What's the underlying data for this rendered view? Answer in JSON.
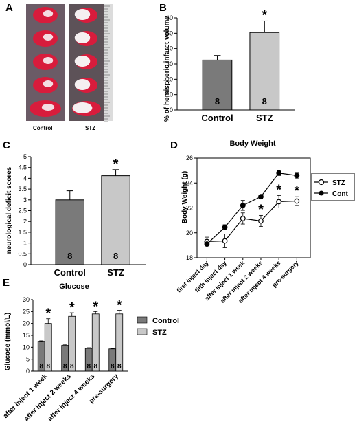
{
  "colors": {
    "control": "#7a7a7a",
    "stz": "#c8c8c8",
    "tissue_red": "#d81c3c",
    "tissue_bg": "#6a6a6a"
  },
  "panel_a": {
    "label": "A",
    "left_label": "Control",
    "right_label": "STZ"
  },
  "chart_data": [
    {
      "id": "B",
      "type": "bar",
      "categories": [
        "Control",
        "STZ"
      ],
      "values": [
        32.5,
        50.5
      ],
      "errors": [
        3,
        7.5
      ],
      "n_labels": [
        "8",
        "8"
      ],
      "significance": [
        "",
        "*"
      ],
      "ylabel": "% of hemispheric infarct volume",
      "ylim": [
        0,
        60
      ],
      "yticks": [
        0,
        10,
        20,
        30,
        40,
        50,
        60
      ]
    },
    {
      "id": "C",
      "type": "bar",
      "categories": [
        "Control",
        "STZ"
      ],
      "values": [
        3.0,
        4.12
      ],
      "errors": [
        0.42,
        0.28
      ],
      "n_labels": [
        "8",
        "8"
      ],
      "significance": [
        "",
        "*"
      ],
      "ylabel": "neurological deficit scores",
      "ylim": [
        0,
        5
      ],
      "yticks": [
        0,
        0.5,
        1,
        1.5,
        2,
        2.5,
        3,
        3.5,
        4,
        4.5,
        5
      ],
      "ytick_labels": [
        "0",
        "0.5",
        "1",
        "1.5",
        "2",
        "2.5",
        "3",
        "3.5",
        "4",
        "4.5",
        "5"
      ]
    },
    {
      "id": "D",
      "type": "line",
      "title": "Body Weight",
      "ylabel": "Body Weight (g)",
      "categories": [
        "first inject day",
        "fifth inject day",
        "after inject 1 week",
        "after inject  2 weeks",
        "after inject  4 weeks",
        "pre-surgery"
      ],
      "series": [
        {
          "name": "STZ",
          "values": [
            19.3,
            19.35,
            21.15,
            20.95,
            22.5,
            22.55
          ],
          "errors": [
            0.35,
            0.55,
            0.45,
            0.45,
            0.5,
            0.35
          ],
          "marker": "open"
        },
        {
          "name": "Cont",
          "values": [
            19.1,
            20.45,
            22.2,
            22.9,
            24.8,
            24.6
          ],
          "errors": [
            0.25,
            0.2,
            0.4,
            0.15,
            0.2,
            0.25
          ],
          "marker": "filled"
        }
      ],
      "significance": [
        "",
        "",
        "",
        "*",
        "*",
        "*"
      ],
      "ylim": [
        18,
        26
      ],
      "yticks": [
        18,
        20,
        22,
        24,
        26
      ]
    },
    {
      "id": "E",
      "type": "bar",
      "title": "Glucose",
      "ylabel": "Glucose (mmol/L)",
      "categories": [
        "after inject 1 week",
        "after inject 2 weeks",
        "after inject  4 weeks",
        "pre-surgery"
      ],
      "series": [
        {
          "name": "Control",
          "values": [
            12.5,
            10.8,
            9.5,
            9.3
          ],
          "errors": [
            0.2,
            0.4,
            0.3,
            0.2
          ]
        },
        {
          "name": "STZ",
          "values": [
            20.0,
            23.0,
            24.0,
            24.0
          ],
          "errors": [
            2.0,
            1.5,
            1.0,
            1.5
          ]
        }
      ],
      "n_labels": [
        "8",
        "8"
      ],
      "significance": [
        "*",
        "*",
        "*",
        "*"
      ],
      "ylim": [
        0,
        30
      ],
      "yticks": [
        0,
        5,
        10,
        15,
        20,
        25,
        30
      ]
    }
  ]
}
